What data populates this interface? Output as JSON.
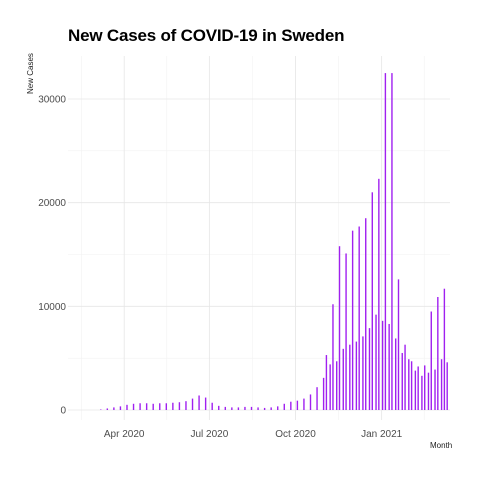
{
  "chart_data": {
    "type": "bar",
    "title": "New Cases of COVID-19 in Sweden",
    "xlabel": "Month",
    "ylabel": "New Cases",
    "x_start": "2020-02-01",
    "x_end": "2021-03-15",
    "ylim": [
      0,
      33500
    ],
    "y_ticks": [
      0,
      10000,
      20000,
      30000
    ],
    "y_tick_labels": [
      "0",
      "10000",
      "20000",
      "30000"
    ],
    "x_ticks": [
      {
        "date": "2020-04-01",
        "label": "Apr 2020"
      },
      {
        "date": "2020-07-01",
        "label": "Jul 2020"
      },
      {
        "date": "2020-10-01",
        "label": "Oct 2020"
      },
      {
        "date": "2021-01-01",
        "label": "Jan 2021"
      }
    ],
    "grid": true,
    "bar_color": "#a020f0",
    "series": [
      {
        "values": [
          [
            "2020-03-07",
            50
          ],
          [
            "2020-03-14",
            150
          ],
          [
            "2020-03-21",
            250
          ],
          [
            "2020-03-28",
            350
          ],
          [
            "2020-04-04",
            500
          ],
          [
            "2020-04-11",
            600
          ],
          [
            "2020-04-18",
            650
          ],
          [
            "2020-04-25",
            650
          ],
          [
            "2020-05-02",
            600
          ],
          [
            "2020-05-09",
            650
          ],
          [
            "2020-05-16",
            650
          ],
          [
            "2020-05-23",
            700
          ],
          [
            "2020-05-30",
            750
          ],
          [
            "2020-06-06",
            850
          ],
          [
            "2020-06-13",
            1100
          ],
          [
            "2020-06-20",
            1400
          ],
          [
            "2020-06-27",
            1200
          ],
          [
            "2020-07-04",
            700
          ],
          [
            "2020-07-11",
            400
          ],
          [
            "2020-07-18",
            300
          ],
          [
            "2020-07-25",
            250
          ],
          [
            "2020-08-01",
            250
          ],
          [
            "2020-08-08",
            300
          ],
          [
            "2020-08-15",
            300
          ],
          [
            "2020-08-22",
            250
          ],
          [
            "2020-08-29",
            200
          ],
          [
            "2020-09-05",
            250
          ],
          [
            "2020-09-12",
            350
          ],
          [
            "2020-09-19",
            600
          ],
          [
            "2020-09-26",
            800
          ],
          [
            "2020-10-03",
            900
          ],
          [
            "2020-10-10",
            1100
          ],
          [
            "2020-10-17",
            1500
          ],
          [
            "2020-10-24",
            2200
          ],
          [
            "2020-10-31",
            3100
          ],
          [
            "2020-11-03",
            5300
          ],
          [
            "2020-11-07",
            4400
          ],
          [
            "2020-11-10",
            10200
          ],
          [
            "2020-11-14",
            4700
          ],
          [
            "2020-11-17",
            15800
          ],
          [
            "2020-11-21",
            5900
          ],
          [
            "2020-11-24",
            15100
          ],
          [
            "2020-11-28",
            6300
          ],
          [
            "2020-12-01",
            17300
          ],
          [
            "2020-12-05",
            6600
          ],
          [
            "2020-12-08",
            17700
          ],
          [
            "2020-12-12",
            7100
          ],
          [
            "2020-12-15",
            18500
          ],
          [
            "2020-12-19",
            7900
          ],
          [
            "2020-12-22",
            21000
          ],
          [
            "2020-12-26",
            9200
          ],
          [
            "2020-12-29",
            22300
          ],
          [
            "2021-01-02",
            8600
          ],
          [
            "2021-01-05",
            32500
          ],
          [
            "2021-01-09",
            8300
          ],
          [
            "2021-01-12",
            32500
          ],
          [
            "2021-01-16",
            6900
          ],
          [
            "2021-01-19",
            12600
          ],
          [
            "2021-01-23",
            5500
          ],
          [
            "2021-01-26",
            6300
          ],
          [
            "2021-01-30",
            4900
          ],
          [
            "2021-02-02",
            4700
          ],
          [
            "2021-02-06",
            3800
          ],
          [
            "2021-02-09",
            4200
          ],
          [
            "2021-02-13",
            3300
          ],
          [
            "2021-02-16",
            4300
          ],
          [
            "2021-02-20",
            3600
          ],
          [
            "2021-02-23",
            9500
          ],
          [
            "2021-02-27",
            3900
          ],
          [
            "2021-03-02",
            10900
          ],
          [
            "2021-03-06",
            4900
          ],
          [
            "2021-03-09",
            11700
          ],
          [
            "2021-03-12",
            4600
          ]
        ]
      }
    ]
  }
}
